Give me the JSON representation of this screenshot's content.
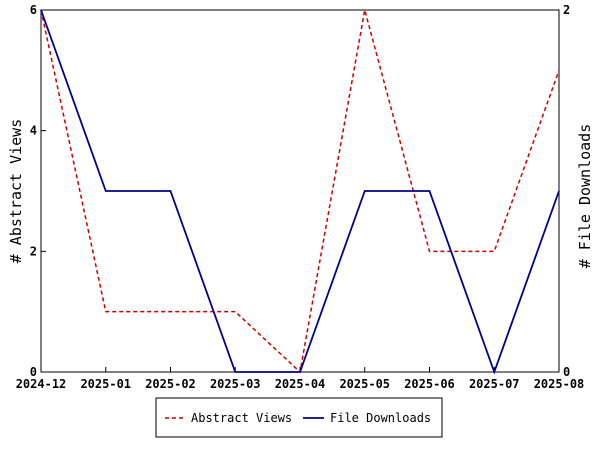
{
  "chart_data": {
    "type": "line",
    "categories": [
      "2024-12",
      "2025-01",
      "2025-02",
      "2025-03",
      "2025-04",
      "2025-05",
      "2025-06",
      "2025-07",
      "2025-08"
    ],
    "series": [
      {
        "name": "Abstract Views",
        "axis": "left",
        "style": "dashed",
        "color": "#cc0000",
        "values": [
          6,
          1,
          1,
          1,
          0,
          6,
          2,
          2,
          5
        ]
      },
      {
        "name": "File Downloads",
        "axis": "right",
        "style": "solid",
        "color": "#00008b",
        "values": [
          2,
          1,
          1,
          0,
          0,
          1,
          1,
          0,
          1
        ]
      }
    ],
    "ylabel_left": "# Abstract Views",
    "ylabel_right": "# File Downloads",
    "ylim_left": [
      0,
      6
    ],
    "ylim_right": [
      0,
      2
    ],
    "yticks_left": [
      "0",
      "2",
      "4",
      "6"
    ],
    "yticks_right": [
      "0",
      "2"
    ],
    "grid": false,
    "legend_position": "bottom-center"
  }
}
